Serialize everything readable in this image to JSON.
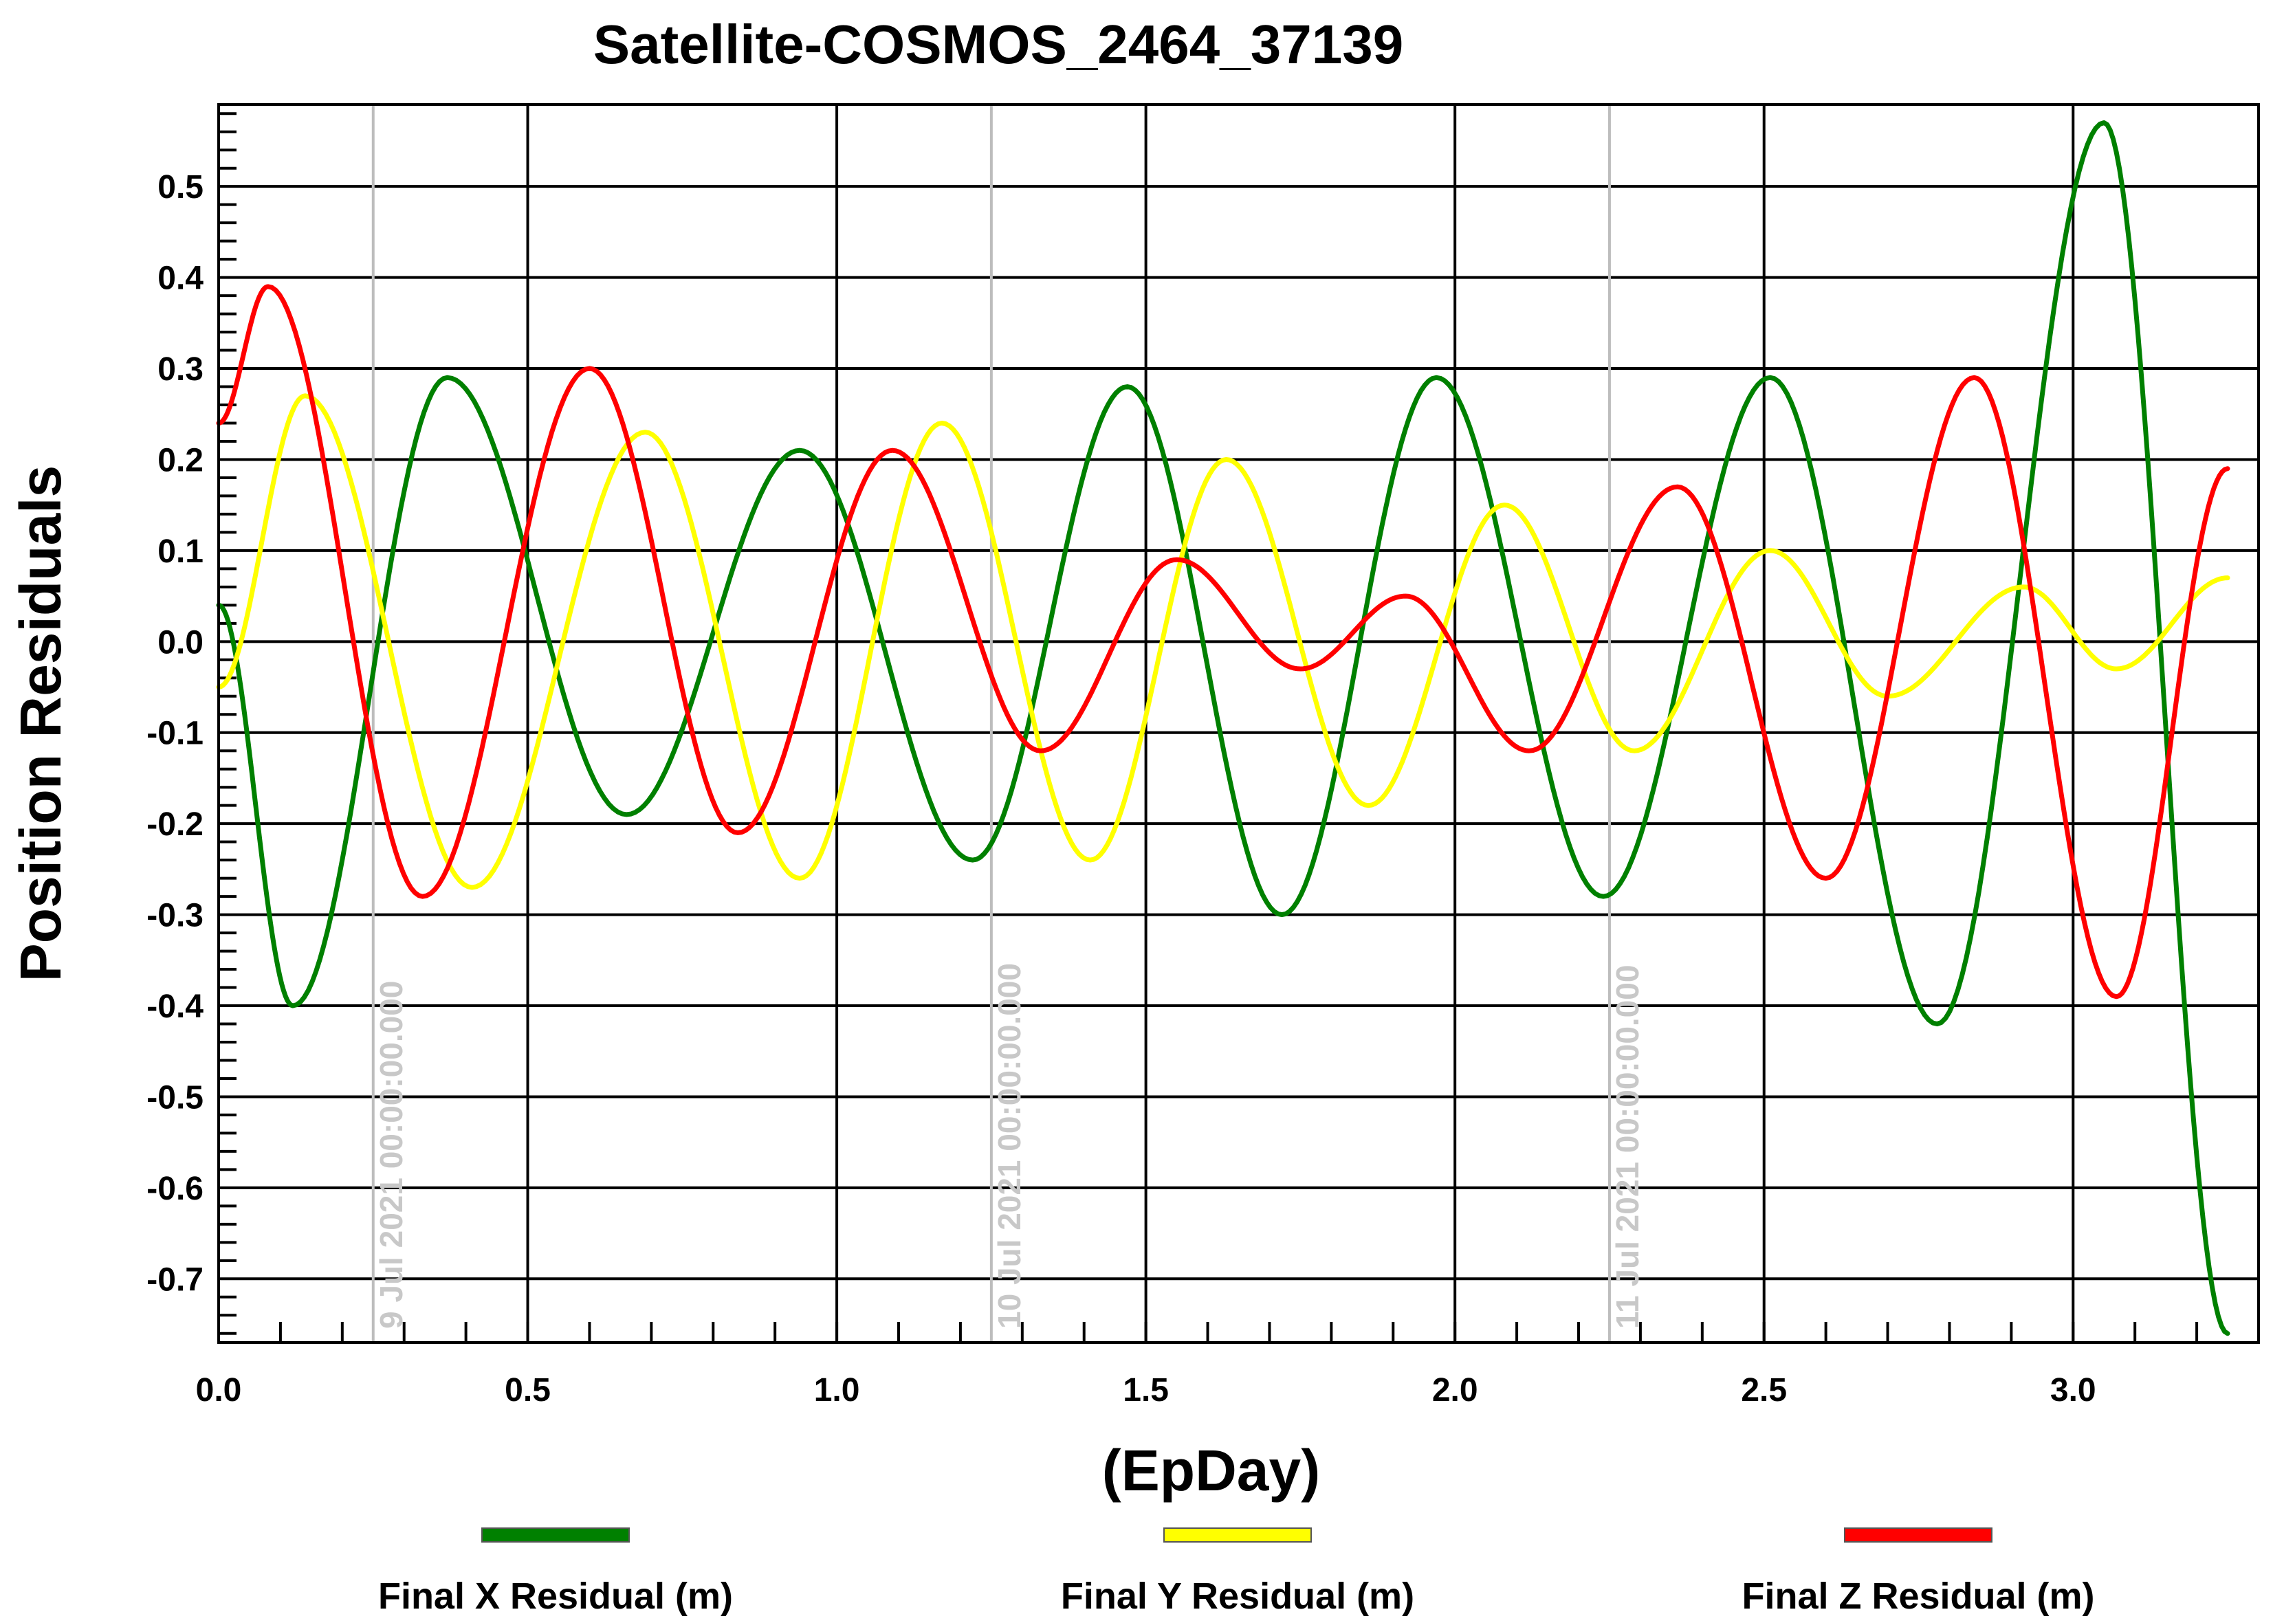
{
  "chart_data": {
    "type": "line",
    "title": "Satellite-COSMOS_2464_37139",
    "xlabel": "(EpDay)",
    "ylabel": "Position Residuals",
    "xlim": [
      0,
      3.3
    ],
    "ylim": [
      -0.77,
      0.59
    ],
    "xticks": [
      0.0,
      0.5,
      1.0,
      1.5,
      2.0,
      2.5,
      3.0
    ],
    "xtick_labels": [
      "0.0",
      "0.5",
      "1.0",
      "1.5",
      "2.0",
      "2.5",
      "3.0"
    ],
    "yticks": [
      0.5,
      0.4,
      0.3,
      0.2,
      0.1,
      0.0,
      -0.1,
      -0.2,
      -0.3,
      -0.4,
      -0.5,
      -0.6,
      -0.7
    ],
    "ytick_labels": [
      "0.5",
      "0.4",
      "0.3",
      "0.2",
      "0.1",
      "0.0",
      "-0.1",
      "-0.2",
      "-0.3",
      "-0.4",
      "-0.5",
      "-0.6",
      "-0.7"
    ],
    "grid": true,
    "legend_position": "bottom",
    "date_markers": [
      {
        "x": 0.25,
        "label": "9 Jul 2021 00:00:00.000"
      },
      {
        "x": 1.25,
        "label": "10 Jul 2021 00:00:00.000"
      },
      {
        "x": 2.25,
        "label": "11 Jul 2021 00:00:00.000"
      }
    ],
    "series": [
      {
        "name": "Final X Residual (m)",
        "color": "#008000",
        "points": [
          [
            0.0,
            0.04
          ],
          [
            0.12,
            -0.4
          ],
          [
            0.37,
            0.29
          ],
          [
            0.66,
            -0.19
          ],
          [
            0.94,
            0.21
          ],
          [
            1.22,
            -0.24
          ],
          [
            1.47,
            0.28
          ],
          [
            1.72,
            -0.3
          ],
          [
            1.97,
            0.29
          ],
          [
            2.24,
            -0.28
          ],
          [
            2.51,
            0.29
          ],
          [
            2.78,
            -0.42
          ],
          [
            3.05,
            0.57
          ],
          [
            3.25,
            -0.76
          ]
        ]
      },
      {
        "name": "Final Y Residual (m)",
        "color": "#ffff00",
        "points": [
          [
            0.0,
            -0.05
          ],
          [
            0.14,
            0.27
          ],
          [
            0.41,
            -0.27
          ],
          [
            0.69,
            0.23
          ],
          [
            0.94,
            -0.26
          ],
          [
            1.17,
            0.24
          ],
          [
            1.41,
            -0.24
          ],
          [
            1.63,
            0.2
          ],
          [
            1.86,
            -0.18
          ],
          [
            2.08,
            0.15
          ],
          [
            2.29,
            -0.12
          ],
          [
            2.51,
            0.1
          ],
          [
            2.7,
            -0.06
          ],
          [
            2.92,
            0.06
          ],
          [
            3.07,
            -0.03
          ],
          [
            3.25,
            0.07
          ]
        ]
      },
      {
        "name": "Final Z Residual (m)",
        "color": "#ff0000",
        "points": [
          [
            0.0,
            0.24
          ],
          [
            0.08,
            0.39
          ],
          [
            0.33,
            -0.28
          ],
          [
            0.6,
            0.3
          ],
          [
            0.84,
            -0.21
          ],
          [
            1.09,
            0.21
          ],
          [
            1.33,
            -0.12
          ],
          [
            1.55,
            0.09
          ],
          [
            1.75,
            -0.03
          ],
          [
            1.92,
            0.05
          ],
          [
            2.12,
            -0.12
          ],
          [
            2.36,
            0.17
          ],
          [
            2.6,
            -0.26
          ],
          [
            2.84,
            0.29
          ],
          [
            3.07,
            -0.39
          ],
          [
            3.25,
            0.19
          ]
        ]
      }
    ]
  }
}
